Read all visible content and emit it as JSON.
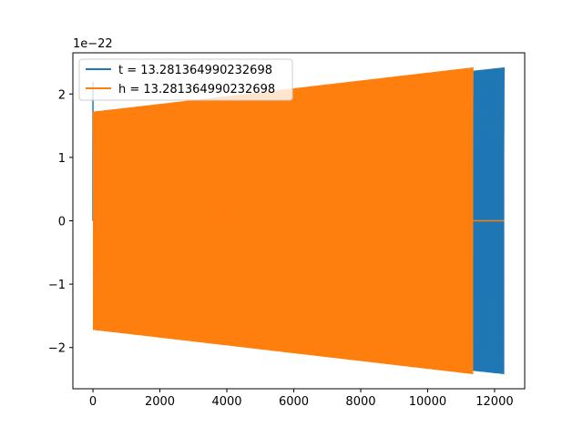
{
  "chart_data": {
    "type": "line",
    "title": "",
    "xlabel": "",
    "ylabel": "",
    "y_offset_text": "1e−22",
    "xlim": [
      -600,
      12900
    ],
    "ylim": [
      -2.65,
      2.65
    ],
    "xticks": [
      0,
      2000,
      4000,
      6000,
      8000,
      10000,
      12000
    ],
    "xtick_labels": [
      "0",
      "2000",
      "4000",
      "6000",
      "8000",
      "10000",
      "12000"
    ],
    "yticks": [
      -2,
      -1,
      0,
      1,
      2
    ],
    "ytick_labels": [
      "−2",
      "−1",
      "0",
      "1",
      "2"
    ],
    "grid": false,
    "legend_position": "top-left",
    "series": [
      {
        "name": "t = 13.281364990232698",
        "color": "#1f77b4",
        "x_start": 0,
        "x_end": 12290,
        "env_start": 1.72,
        "env_end": 2.42,
        "initial_spike": 2.2
      },
      {
        "name": "h = 13.281364990232698",
        "color": "#ff7f0e",
        "x_start": 0,
        "x_end": 11360,
        "env_start": 1.72,
        "env_end": 2.42,
        "flat_after": [
          11360,
          12290
        ]
      }
    ]
  }
}
